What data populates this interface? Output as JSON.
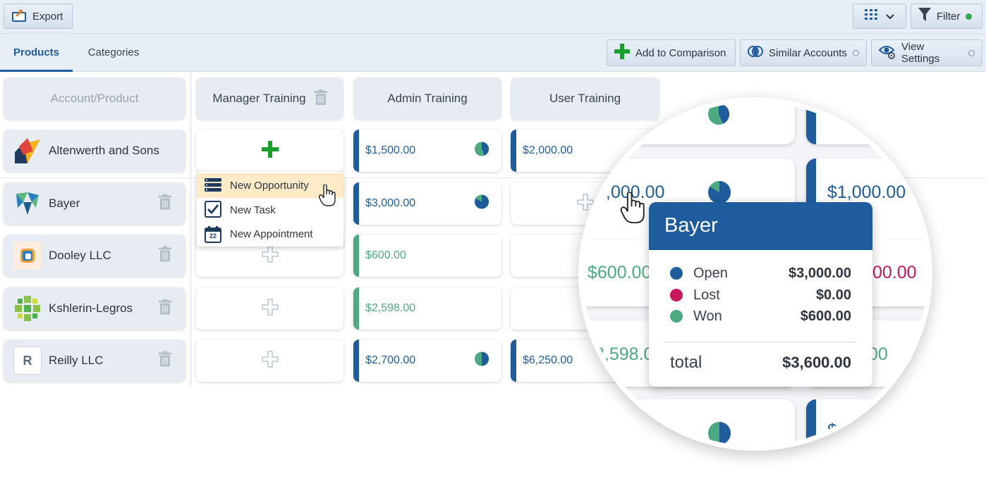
{
  "toolbar": {
    "export_label": "Export",
    "filter_label": "Filter",
    "filter_status_color": "#2fa84f"
  },
  "tabs": [
    {
      "label": "Products",
      "active": true
    },
    {
      "label": "Categories",
      "active": false
    }
  ],
  "actions": {
    "add_comparison": "Add to Comparison",
    "similar_accounts": "Similar Accounts",
    "view_settings": "View Settings"
  },
  "columns": {
    "corner": "Account/Product",
    "products": [
      "Manager Training",
      "Admin Training",
      "User Training"
    ]
  },
  "accounts": [
    {
      "name": "Altenwerth and Sons",
      "icon": "altenwerth-logo"
    },
    {
      "name": "Bayer",
      "icon": "bayer-logo"
    },
    {
      "name": "Dooley LLC",
      "icon": "dooley-logo"
    },
    {
      "name": "Kshlerin-Legros",
      "icon": "kshlerin-logo"
    },
    {
      "name": "Reilly LLC",
      "icon": "reilly-logo",
      "letter": "R"
    }
  ],
  "values": {
    "altenwerth_admin": "$1,500.00",
    "altenwerth_user": "$2,000.00",
    "bayer_admin": "$3,000.00",
    "dooley_admin": "$600.00",
    "kshlerin_admin": "$2,598.00",
    "reilly_admin": "$2,700.00",
    "reilly_user": "$6,250.00"
  },
  "context_menu": {
    "items": [
      "New Opportunity",
      "New Task",
      "New Appointment"
    ],
    "calendar_day": "22"
  },
  "magnifier": {
    "bayer_value_partial": ",000.00",
    "right_value": "$1,000.00",
    "dooley_value_partial": "$600.00",
    "lost_value_partial": "00.00",
    "kshlerin_value_partial": "2,598.0",
    "won_value_partial": "00",
    "bottom_partial": "$"
  },
  "tooltip": {
    "title": "Bayer",
    "rows": [
      {
        "label": "Open",
        "amount": "$3,000.00",
        "color": "#1f5c9e"
      },
      {
        "label": "Lost",
        "amount": "$0.00",
        "color": "#c8175d"
      },
      {
        "label": "Won",
        "amount": "$600.00",
        "color": "#4caa80"
      }
    ],
    "total_label": "total",
    "total_amount": "$3,600.00"
  },
  "colors": {
    "open": "#1f5c9e",
    "won": "#4caa80",
    "lost": "#c8175d",
    "accent": "#1f5c9e"
  }
}
